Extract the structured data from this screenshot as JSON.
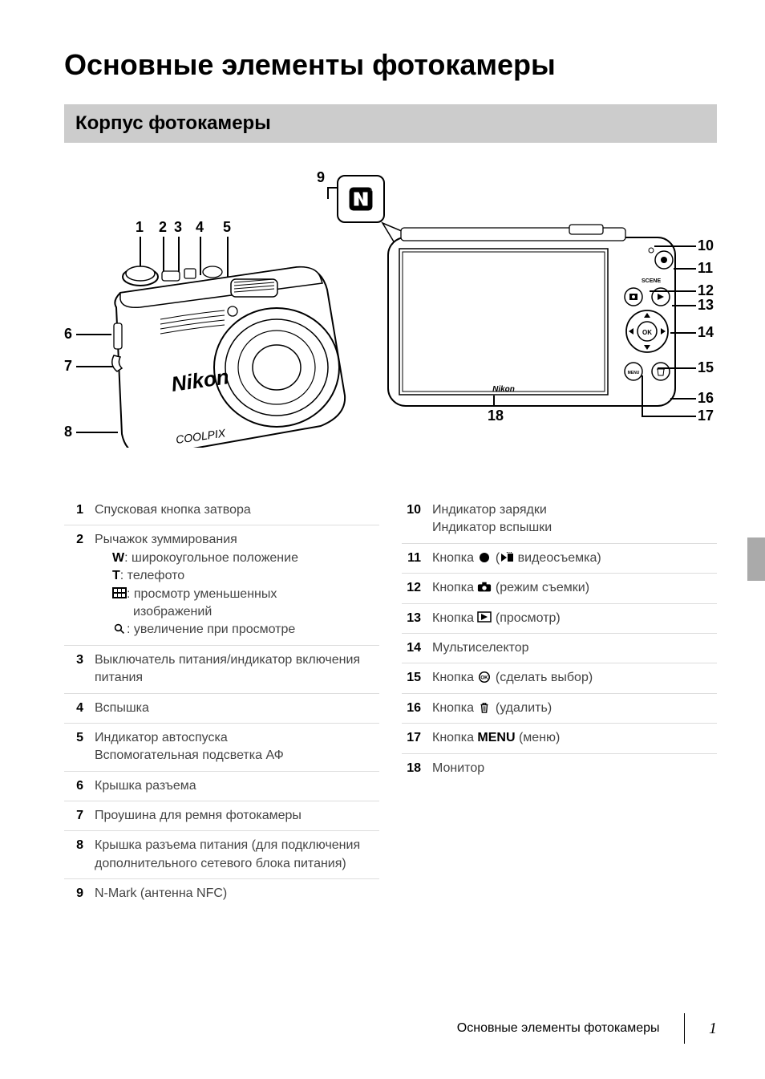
{
  "page_title": "Основные элементы фотокамеры",
  "section_header": "Корпус фотокамеры",
  "footer_text": "Основные элементы фотокамеры",
  "page_number": "1",
  "diagram": {
    "callouts_left": [
      "1",
      "2",
      "3",
      "4",
      "5",
      "6",
      "7",
      "8",
      "9"
    ],
    "callouts_right": [
      "10",
      "11",
      "12",
      "13",
      "14",
      "15",
      "16",
      "17",
      "18"
    ],
    "brand_text_front": "Nikon",
    "model_text_front": "COOLPIX",
    "brand_text_back": "Nikon",
    "scene_label": "SCENE"
  },
  "parts_left": [
    {
      "n": "1",
      "html": "Спусковая кнопка затвора"
    },
    {
      "n": "2",
      "html": "Рычажок зуммирования<span class='sub'><strong>W</strong>: широкоугольное положение</span><span class='sub'><strong>T</strong>: телефото</span><span class='sub'><svg class='inline-icon' viewBox='0 0 18 14'><rect x='0' y='0' width='18' height='14' fill='#000'/><rect x='2' y='2' width='4' height='4' fill='#fff'/><rect x='7' y='2' width='4' height='4' fill='#fff'/><rect x='12' y='2' width='4' height='4' fill='#fff'/><rect x='2' y='8' width='4' height='4' fill='#fff'/><rect x='7' y='8' width='4' height='4' fill='#fff'/><rect x='12' y='8' width='4' height='4' fill='#fff'/></svg>: просмотр уменьшенных</span><span class='sub-indent'>изображений</span><span class='sub'><svg class='inline-icon' viewBox='0 0 18 18'><circle cx='7' cy='7' r='5' fill='none' stroke='#000' stroke-width='2'/><line x1='11' y1='11' x2='16' y2='16' stroke='#000' stroke-width='2'/></svg>: увеличение при просмотре</span>"
    },
    {
      "n": "3",
      "html": "Выключатель питания/индикатор включения питания"
    },
    {
      "n": "4",
      "html": "Вспышка"
    },
    {
      "n": "5",
      "html": "Индикатор автоспуска<br>Вспомогательная подсветка АФ"
    },
    {
      "n": "6",
      "html": "Крышка разъема"
    },
    {
      "n": "7",
      "html": "Проушина для ремня фотокамеры"
    },
    {
      "n": "8",
      "html": "Крышка разъема питания (для подключения дополнительного сетевого блока питания)"
    },
    {
      "n": "9",
      "html": "N-Mark (антенна NFC)"
    }
  ],
  "parts_right": [
    {
      "n": "10",
      "html": "Индикатор зарядки<br>Индикатор вспышки"
    },
    {
      "n": "11",
      "html": "Кнопка <svg class='inline-icon' viewBox='0 0 14 14'><circle cx='7' cy='7' r='6' fill='#000'/></svg> (<svg class='inline-icon' viewBox='0 0 18 14'><path d='M2 2 L2 12 L9 7 Z' fill='#000'/><rect x='10' y='2' width='7' height='10' fill='#000'/><path d='M12 1 L12 -2 L15 1 M12 -2 L9 1' stroke='#000' fill='none'/></svg> видеосъемка)"
    },
    {
      "n": "12",
      "html": "Кнопка <svg class='inline-icon' viewBox='0 0 20 14'><rect x='1' y='3' width='18' height='10' rx='2' fill='#000'/><rect x='7' y='0' width='6' height='4' fill='#000'/><circle cx='10' cy='8' r='3' fill='#fff'/></svg> (режим съемки)"
    },
    {
      "n": "13",
      "html": "Кнопка <svg class='inline-icon' viewBox='0 0 18 14'><rect x='1' y='1' width='16' height='12' fill='none' stroke='#000' stroke-width='1.5'/><path d='M5 3 L5 11 L13 7 Z' fill='#000'/></svg> (просмотр)"
    },
    {
      "n": "14",
      "html": "Мультиселектор"
    },
    {
      "n": "15",
      "html": "Кнопка <svg class='inline-icon' viewBox='0 0 18 18'><circle cx='9' cy='9' r='8' fill='none' stroke='#000' stroke-width='2'/><text x='9' y='12' text-anchor='middle' font-size='8' font-weight='900'>OK</text></svg> (сделать выбор)"
    },
    {
      "n": "16",
      "html": "Кнопка <svg class='inline-icon' viewBox='0 0 14 16'><path d='M3 4 L11 4 L10 15 L4 15 Z' fill='none' stroke='#000' stroke-width='1.5'/><path d='M2 4 L12 4 M5 2 L9 2 L9 4 L5 4 Z' fill='none' stroke='#000' stroke-width='1.5'/><line x1='6' y1='6' x2='6' y2='13' stroke='#000'/><line x1='8' y1='6' x2='8' y2='13' stroke='#000'/></svg> (удалить)"
    },
    {
      "n": "17",
      "html": "Кнопка <strong>MENU</strong> (меню)"
    },
    {
      "n": "18",
      "html": "Монитор"
    }
  ],
  "colors": {
    "section_bg": "#cccccc",
    "row_divider": "#dddddd",
    "text_body": "#444444",
    "side_tab": "#aaaaaa"
  },
  "typography": {
    "title_fontsize": 36,
    "section_fontsize": 24,
    "body_fontsize": 16,
    "callout_fontsize": 18
  }
}
